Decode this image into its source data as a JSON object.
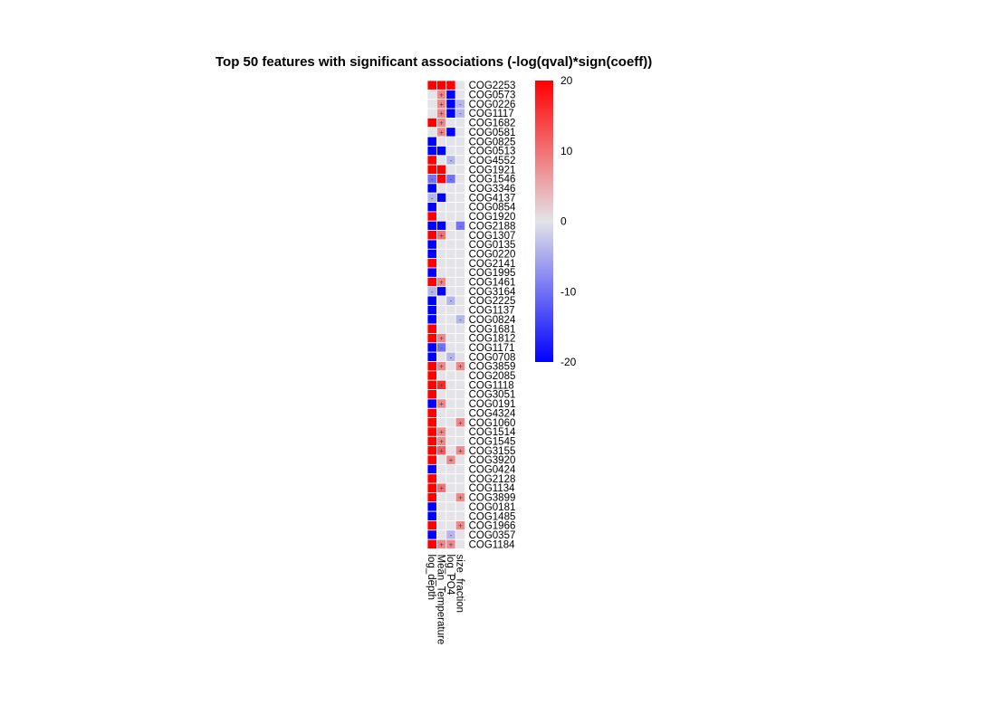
{
  "chart_data": {
    "type": "heatmap",
    "title": "Top 50 features with significant associations (-log(qval)*sign(coeff))",
    "columns": [
      "log_depth",
      "Mean_Temperature",
      "log_PO4",
      "size_fraction"
    ],
    "rows": [
      "COG2253",
      "COG0573",
      "COG0226",
      "COG1117",
      "COG1682",
      "COG0581",
      "COG0825",
      "COG0513",
      "COG4552",
      "COG1921",
      "COG1546",
      "COG3346",
      "COG4137",
      "COG0854",
      "COG1920",
      "COG2188",
      "COG1307",
      "COG0135",
      "COG0220",
      "COG2141",
      "COG1995",
      "COG1461",
      "COG3164",
      "COG2225",
      "COG1137",
      "COG0824",
      "COG1681",
      "COG1812",
      "COG1171",
      "COG0708",
      "COG3859",
      "COG2085",
      "COG1118",
      "COG3051",
      "COG0191",
      "COG4324",
      "COG1060",
      "COG1514",
      "COG1545",
      "COG3155",
      "COG3920",
      "COG0424",
      "COG2128",
      "COG1134",
      "COG3899",
      "COG0181",
      "COG1485",
      "COG1966",
      "COG0357",
      "COG1184"
    ],
    "values": [
      [
        20,
        20,
        20,
        0
      ],
      [
        0,
        8,
        -20,
        0
      ],
      [
        0,
        8,
        -20,
        -4
      ],
      [
        0,
        8,
        -20,
        -4
      ],
      [
        20,
        8,
        0,
        0
      ],
      [
        0,
        8,
        -20,
        0
      ],
      [
        -20,
        0,
        0,
        0
      ],
      [
        -20,
        -20,
        0,
        0
      ],
      [
        20,
        0,
        -4,
        0
      ],
      [
        20,
        20,
        0,
        0
      ],
      [
        -10,
        20,
        -10,
        0
      ],
      [
        -20,
        0,
        0,
        0
      ],
      [
        -4,
        -20,
        0,
        0
      ],
      [
        -20,
        0,
        0,
        0
      ],
      [
        20,
        0,
        0,
        0
      ],
      [
        -20,
        -20,
        0,
        -10
      ],
      [
        20,
        10,
        0,
        0
      ],
      [
        -20,
        0,
        0,
        0
      ],
      [
        -20,
        0,
        0,
        0
      ],
      [
        20,
        0,
        0,
        0
      ],
      [
        -20,
        0,
        0,
        0
      ],
      [
        20,
        8,
        0,
        0
      ],
      [
        -4,
        -20,
        0,
        0
      ],
      [
        -20,
        0,
        -4,
        0
      ],
      [
        -20,
        0,
        0,
        0
      ],
      [
        -20,
        0,
        0,
        -4
      ],
      [
        20,
        0,
        0,
        0
      ],
      [
        20,
        8,
        0,
        0
      ],
      [
        -20,
        -10,
        0,
        0
      ],
      [
        -20,
        0,
        -4,
        0
      ],
      [
        20,
        8,
        0,
        8
      ],
      [
        20,
        0,
        0,
        0
      ],
      [
        20,
        16,
        0,
        0
      ],
      [
        20,
        0,
        0,
        0
      ],
      [
        -20,
        8,
        0,
        0
      ],
      [
        20,
        0,
        0,
        0
      ],
      [
        20,
        0,
        0,
        8
      ],
      [
        20,
        8,
        0,
        0
      ],
      [
        20,
        8,
        0,
        0
      ],
      [
        20,
        12,
        0,
        8
      ],
      [
        20,
        0,
        8,
        0
      ],
      [
        -20,
        0,
        0,
        0
      ],
      [
        20,
        0,
        0,
        0
      ],
      [
        20,
        10,
        0,
        0
      ],
      [
        20,
        0,
        0,
        8
      ],
      [
        -20,
        0,
        0,
        0
      ],
      [
        -20,
        0,
        0,
        0
      ],
      [
        20,
        0,
        0,
        8
      ],
      [
        -20,
        0,
        -4,
        0
      ],
      [
        20,
        8,
        8,
        0
      ]
    ],
    "marks": [
      [
        "",
        "",
        "",
        ""
      ],
      [
        "",
        "+",
        "",
        ""
      ],
      [
        "",
        "+",
        "",
        "-"
      ],
      [
        "",
        "+",
        "",
        "-"
      ],
      [
        "",
        "+",
        "",
        ""
      ],
      [
        "",
        "+",
        "",
        ""
      ],
      [
        "",
        "",
        "",
        ""
      ],
      [
        "",
        "",
        "",
        ""
      ],
      [
        "",
        "",
        "-",
        ""
      ],
      [
        "",
        "",
        "",
        ""
      ],
      [
        "-",
        "",
        "-",
        ""
      ],
      [
        "",
        "",
        "",
        ""
      ],
      [
        "-",
        "",
        "",
        ""
      ],
      [
        "",
        "",
        "",
        ""
      ],
      [
        "",
        "",
        "",
        ""
      ],
      [
        "",
        "",
        "",
        "-"
      ],
      [
        "",
        "+",
        "",
        ""
      ],
      [
        "",
        "",
        "",
        ""
      ],
      [
        "",
        "",
        "",
        ""
      ],
      [
        "",
        "",
        "",
        ""
      ],
      [
        "",
        "",
        "",
        ""
      ],
      [
        "",
        "+",
        "",
        ""
      ],
      [
        "-",
        "",
        "",
        ""
      ],
      [
        "",
        "",
        "-",
        ""
      ],
      [
        "",
        "",
        "",
        ""
      ],
      [
        "",
        "",
        "",
        "-"
      ],
      [
        "",
        "",
        "",
        ""
      ],
      [
        "",
        "+",
        "",
        ""
      ],
      [
        "",
        "-",
        "",
        ""
      ],
      [
        "",
        "",
        "-",
        ""
      ],
      [
        "",
        "+",
        "",
        "+"
      ],
      [
        "",
        "",
        "",
        ""
      ],
      [
        "",
        "+",
        "",
        ""
      ],
      [
        "",
        "",
        "",
        ""
      ],
      [
        "",
        "+",
        "",
        ""
      ],
      [
        "",
        "",
        "",
        ""
      ],
      [
        "",
        "",
        "",
        "+"
      ],
      [
        "",
        "+",
        "",
        ""
      ],
      [
        "",
        "+",
        "",
        ""
      ],
      [
        "",
        "+",
        "",
        "+"
      ],
      [
        "",
        "",
        "+",
        ""
      ],
      [
        "",
        "",
        "",
        ""
      ],
      [
        "",
        "",
        "",
        ""
      ],
      [
        "",
        "+",
        "",
        ""
      ],
      [
        "",
        "",
        "",
        "+"
      ],
      [
        "",
        "",
        "",
        ""
      ],
      [
        "",
        "",
        "",
        ""
      ],
      [
        "",
        "",
        "",
        "+"
      ],
      [
        "",
        "",
        "-",
        ""
      ],
      [
        "",
        "+",
        "+",
        ""
      ]
    ],
    "legend": {
      "position": "right",
      "min": -20,
      "max": 20,
      "ticks": [
        "20",
        "10",
        "0",
        "-10",
        "-20"
      ]
    },
    "colors": {
      "low": "#0000ff",
      "mid": "#e3e3e8",
      "high": "#ff0000",
      "grid": "#ffffff"
    }
  }
}
